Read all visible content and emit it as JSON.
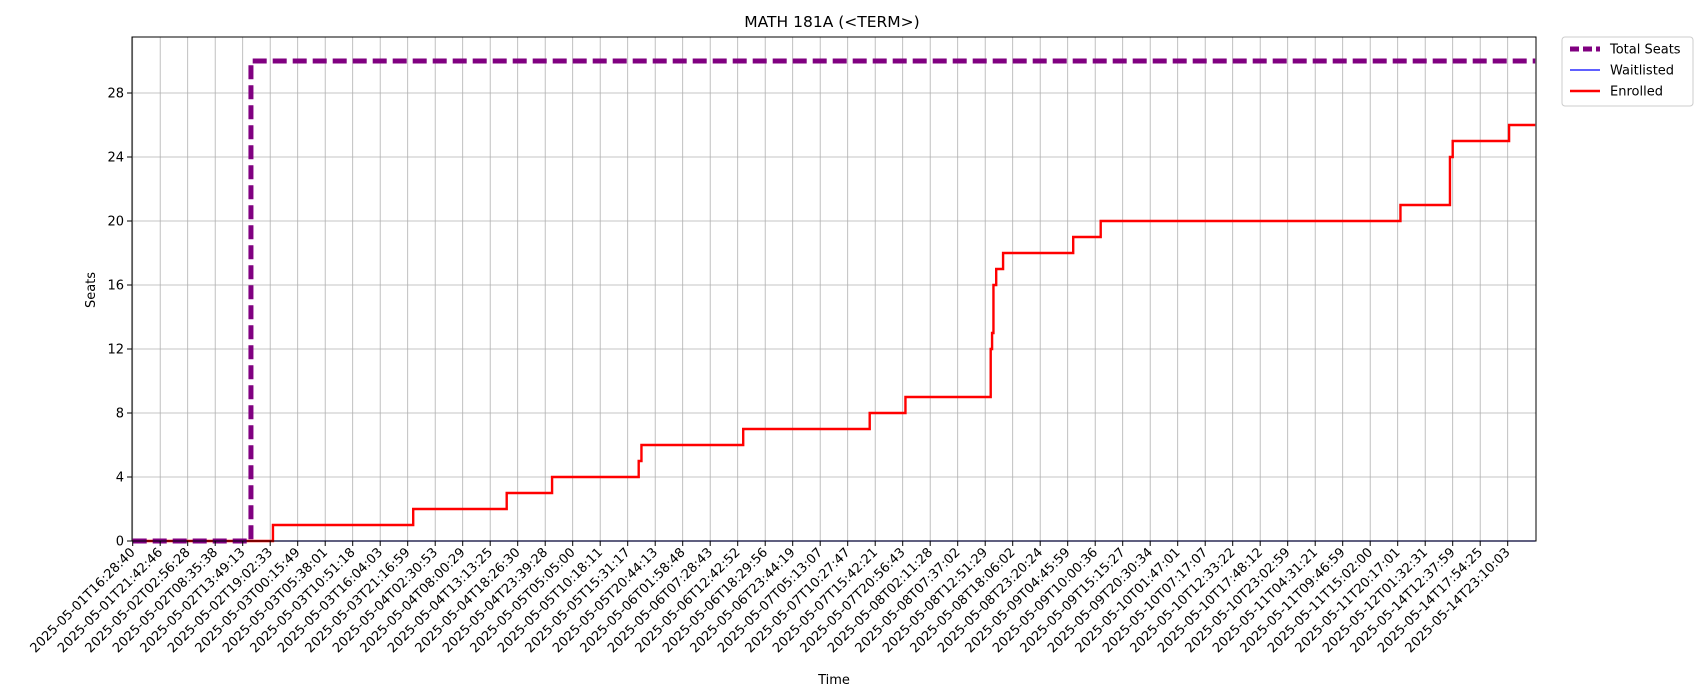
{
  "chart_data": {
    "type": "line",
    "title": "MATH 181A (<TERM>)",
    "xlabel": "Time",
    "ylabel": "Seats",
    "ylim": [
      0,
      31.5
    ],
    "yticks": [
      "0",
      "4",
      "8",
      "12",
      "16",
      "20",
      "24",
      "28"
    ],
    "grid": true,
    "legend_position": "outside-top-right",
    "x_ticks": [
      "2025-05-01T16:28:40",
      "2025-05-01T21:42:46",
      "2025-05-02T02:56:28",
      "2025-05-02T08:35:38",
      "2025-05-02T13:49:13",
      "2025-05-02T19:02:33",
      "2025-05-03T00:15:49",
      "2025-05-03T05:38:01",
      "2025-05-03T10:51:18",
      "2025-05-03T16:04:03",
      "2025-05-03T21:16:59",
      "2025-05-04T02:30:53",
      "2025-05-04T08:00:29",
      "2025-05-04T13:13:25",
      "2025-05-04T18:26:30",
      "2025-05-04T23:39:28",
      "2025-05-05T05:05:00",
      "2025-05-05T10:18:11",
      "2025-05-05T15:31:17",
      "2025-05-05T20:44:13",
      "2025-05-06T01:58:48",
      "2025-05-06T07:28:43",
      "2025-05-06T12:42:52",
      "2025-05-06T18:29:56",
      "2025-05-06T23:44:19",
      "2025-05-07T05:13:07",
      "2025-05-07T10:27:47",
      "2025-05-07T15:42:21",
      "2025-05-07T20:56:43",
      "2025-05-08T02:11:28",
      "2025-05-08T07:37:02",
      "2025-05-08T12:51:29",
      "2025-05-08T18:06:02",
      "2025-05-08T23:20:24",
      "2025-05-09T04:45:59",
      "2025-05-09T10:00:36",
      "2025-05-09T15:15:27",
      "2025-05-09T20:30:34",
      "2025-05-10T01:47:01",
      "2025-05-10T07:17:07",
      "2025-05-10T12:33:22",
      "2025-05-10T17:48:12",
      "2025-05-10T23:02:59",
      "2025-05-11T04:31:21",
      "2025-05-11T09:46:59",
      "2025-05-11T15:02:00",
      "2025-05-11T20:17:01",
      "2025-05-12T01:32:31",
      "2025-05-14T12:37:59",
      "2025-05-14T17:54:25",
      "2025-05-14T23:10:03"
    ],
    "series": [
      {
        "name": "Total Seats",
        "color": "#800080",
        "style": "dashed",
        "points": [
          [
            0,
            0
          ],
          [
            4.3,
            0
          ],
          [
            4.3,
            30
          ],
          [
            51.0,
            30
          ]
        ]
      },
      {
        "name": "Waitlisted",
        "color": "#0000ff",
        "style": "solid",
        "points": [
          [
            0,
            0
          ],
          [
            51.0,
            0
          ]
        ]
      },
      {
        "name": "Enrolled",
        "color": "#ff0000",
        "style": "solid",
        "points": [
          [
            0,
            0
          ],
          [
            5.1,
            0
          ],
          [
            5.1,
            1
          ],
          [
            10.2,
            1
          ],
          [
            10.2,
            2
          ],
          [
            13.6,
            2
          ],
          [
            13.6,
            3
          ],
          [
            15.25,
            3
          ],
          [
            15.25,
            4
          ],
          [
            18.4,
            4
          ],
          [
            18.4,
            5
          ],
          [
            18.5,
            5
          ],
          [
            18.5,
            6
          ],
          [
            22.2,
            6
          ],
          [
            22.2,
            7
          ],
          [
            26.8,
            7
          ],
          [
            26.8,
            8
          ],
          [
            28.1,
            8
          ],
          [
            28.1,
            9
          ],
          [
            31.2,
            9
          ],
          [
            31.2,
            12
          ],
          [
            31.25,
            12
          ],
          [
            31.25,
            13
          ],
          [
            31.3,
            13
          ],
          [
            31.3,
            16
          ],
          [
            31.4,
            16
          ],
          [
            31.4,
            17
          ],
          [
            31.65,
            17
          ],
          [
            31.65,
            18
          ],
          [
            34.2,
            18
          ],
          [
            34.2,
            19
          ],
          [
            35.2,
            19
          ],
          [
            35.2,
            20
          ],
          [
            46.1,
            20
          ],
          [
            46.1,
            21
          ],
          [
            47.9,
            21
          ],
          [
            47.9,
            24
          ],
          [
            48.0,
            24
          ],
          [
            48.0,
            25
          ],
          [
            50.05,
            25
          ],
          [
            50.05,
            26
          ],
          [
            51.0,
            26
          ]
        ]
      }
    ]
  }
}
